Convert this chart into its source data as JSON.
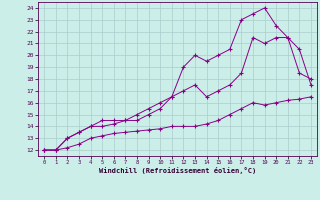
{
  "xlabel": "Windchill (Refroidissement éolien,°C)",
  "bg_color": "#cceee8",
  "grid_color": "#aacccc",
  "line_color": "#880088",
  "xlim": [
    -0.5,
    23.5
  ],
  "ylim": [
    11.5,
    24.5
  ],
  "xticks": [
    0,
    1,
    2,
    3,
    4,
    5,
    6,
    7,
    8,
    9,
    10,
    11,
    12,
    13,
    14,
    15,
    16,
    17,
    18,
    19,
    20,
    21,
    22,
    23
  ],
  "yticks": [
    12,
    13,
    14,
    15,
    16,
    17,
    18,
    19,
    20,
    21,
    22,
    23,
    24
  ],
  "series1_x": [
    0,
    1,
    2,
    3,
    4,
    5,
    6,
    7,
    8,
    9,
    10,
    11,
    12,
    13,
    14,
    15,
    16,
    17,
    18,
    19,
    20,
    21,
    22,
    23
  ],
  "series1_y": [
    12,
    12,
    12.2,
    12.5,
    13,
    13.2,
    13.4,
    13.5,
    13.6,
    13.7,
    13.8,
    14,
    14,
    14,
    14.2,
    14.5,
    15,
    15.5,
    16,
    15.8,
    16,
    16.2,
    16.3,
    16.5
  ],
  "series2_x": [
    0,
    1,
    2,
    3,
    4,
    5,
    6,
    7,
    8,
    9,
    10,
    11,
    12,
    13,
    14,
    15,
    16,
    17,
    18,
    19,
    20,
    21,
    22,
    23
  ],
  "series2_y": [
    12,
    12,
    13,
    13.5,
    14,
    14,
    14.2,
    14.5,
    14.5,
    15,
    15.5,
    16.5,
    17,
    17.5,
    16.5,
    17,
    17.5,
    18.5,
    21.5,
    21,
    21.5,
    21.5,
    18.5,
    18
  ],
  "series3_x": [
    0,
    1,
    2,
    3,
    4,
    5,
    6,
    7,
    8,
    9,
    10,
    11,
    12,
    13,
    14,
    15,
    16,
    17,
    18,
    19,
    20,
    21,
    22,
    23
  ],
  "series3_y": [
    12,
    12,
    13,
    13.5,
    14,
    14.5,
    14.5,
    14.5,
    15,
    15.5,
    16,
    16.5,
    19,
    20,
    19.5,
    20,
    20.5,
    23,
    23.5,
    24,
    22.5,
    21.5,
    20.5,
    17.5
  ]
}
